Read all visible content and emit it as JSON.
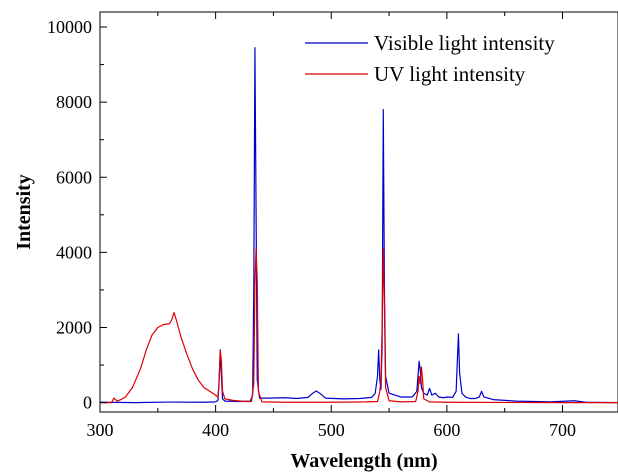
{
  "chart_data": {
    "type": "line",
    "title": "",
    "xlabel": "Wavelength (nm)",
    "ylabel": "Intensity",
    "xlim": [
      300,
      748
    ],
    "ylim": [
      -250,
      10400
    ],
    "xticks": [
      300,
      400,
      500,
      600,
      700
    ],
    "yticks": [
      0,
      2000,
      4000,
      6000,
      8000,
      10000
    ],
    "xtick_labels": [
      "300",
      "400",
      "500",
      "600",
      "700"
    ],
    "ytick_labels": [
      "0",
      "2000",
      "4000",
      "6000",
      "8000",
      "10000"
    ],
    "grid": false,
    "legend_position": "top-right",
    "series": [
      {
        "name": "Visible light intensity",
        "color": "#0000cc",
        "points": [
          [
            300,
            10
          ],
          [
            330,
            0
          ],
          [
            360,
            15
          ],
          [
            390,
            10
          ],
          [
            400,
            20
          ],
          [
            402,
            60
          ],
          [
            403,
            600
          ],
          [
            404,
            1400
          ],
          [
            405,
            700
          ],
          [
            406,
            100
          ],
          [
            408,
            40
          ],
          [
            420,
            30
          ],
          [
            430,
            40
          ],
          [
            432,
            200
          ],
          [
            433,
            3000
          ],
          [
            434,
            9450
          ],
          [
            435,
            5000
          ],
          [
            436,
            600
          ],
          [
            438,
            120
          ],
          [
            445,
            120
          ],
          [
            460,
            130
          ],
          [
            470,
            110
          ],
          [
            480,
            140
          ],
          [
            484,
            250
          ],
          [
            487,
            310
          ],
          [
            490,
            250
          ],
          [
            495,
            120
          ],
          [
            510,
            100
          ],
          [
            525,
            110
          ],
          [
            535,
            140
          ],
          [
            538,
            250
          ],
          [
            540,
            700
          ],
          [
            541,
            1400
          ],
          [
            542,
            600
          ],
          [
            543,
            350
          ],
          [
            544,
            1500
          ],
          [
            545,
            7800
          ],
          [
            546,
            3000
          ],
          [
            547,
            700
          ],
          [
            550,
            250
          ],
          [
            560,
            150
          ],
          [
            570,
            150
          ],
          [
            574,
            300
          ],
          [
            576,
            1100
          ],
          [
            577,
            850
          ],
          [
            578,
            400
          ],
          [
            580,
            250
          ],
          [
            583,
            200
          ],
          [
            585,
            380
          ],
          [
            587,
            200
          ],
          [
            590,
            250
          ],
          [
            593,
            150
          ],
          [
            597,
            130
          ],
          [
            600,
            150
          ],
          [
            605,
            140
          ],
          [
            608,
            300
          ],
          [
            610,
            1830
          ],
          [
            611,
            800
          ],
          [
            613,
            250
          ],
          [
            616,
            150
          ],
          [
            620,
            110
          ],
          [
            625,
            110
          ],
          [
            628,
            150
          ],
          [
            630,
            300
          ],
          [
            632,
            150
          ],
          [
            640,
            80
          ],
          [
            660,
            40
          ],
          [
            690,
            20
          ],
          [
            710,
            50
          ],
          [
            720,
            10
          ],
          [
            748,
            0
          ]
        ]
      },
      {
        "name": "UV light intensity",
        "color": "#dd0000",
        "points": [
          [
            300,
            0
          ],
          [
            310,
            0
          ],
          [
            312,
            120
          ],
          [
            315,
            40
          ],
          [
            318,
            80
          ],
          [
            322,
            150
          ],
          [
            328,
            400
          ],
          [
            335,
            900
          ],
          [
            340,
            1400
          ],
          [
            345,
            1800
          ],
          [
            350,
            2000
          ],
          [
            355,
            2080
          ],
          [
            360,
            2100
          ],
          [
            362,
            2200
          ],
          [
            364,
            2400
          ],
          [
            366,
            2200
          ],
          [
            370,
            1750
          ],
          [
            375,
            1300
          ],
          [
            380,
            900
          ],
          [
            385,
            600
          ],
          [
            390,
            400
          ],
          [
            395,
            300
          ],
          [
            400,
            200
          ],
          [
            402,
            150
          ],
          [
            403,
            500
          ],
          [
            404,
            1400
          ],
          [
            405,
            1100
          ],
          [
            406,
            300
          ],
          [
            408,
            100
          ],
          [
            415,
            60
          ],
          [
            425,
            30
          ],
          [
            431,
            30
          ],
          [
            433,
            500
          ],
          [
            434,
            3200
          ],
          [
            435,
            4100
          ],
          [
            436,
            3200
          ],
          [
            437,
            300
          ],
          [
            440,
            20
          ],
          [
            460,
            10
          ],
          [
            500,
            10
          ],
          [
            530,
            20
          ],
          [
            540,
            30
          ],
          [
            542,
            300
          ],
          [
            543,
            600
          ],
          [
            544,
            2000
          ],
          [
            545,
            4100
          ],
          [
            546,
            2500
          ],
          [
            547,
            400
          ],
          [
            550,
            50
          ],
          [
            560,
            20
          ],
          [
            573,
            30
          ],
          [
            575,
            300
          ],
          [
            576,
            700
          ],
          [
            577,
            500
          ],
          [
            578,
            950
          ],
          [
            579,
            600
          ],
          [
            580,
            100
          ],
          [
            585,
            20
          ],
          [
            600,
            10
          ],
          [
            650,
            5
          ],
          [
            700,
            0
          ],
          [
            748,
            0
          ]
        ]
      }
    ]
  }
}
